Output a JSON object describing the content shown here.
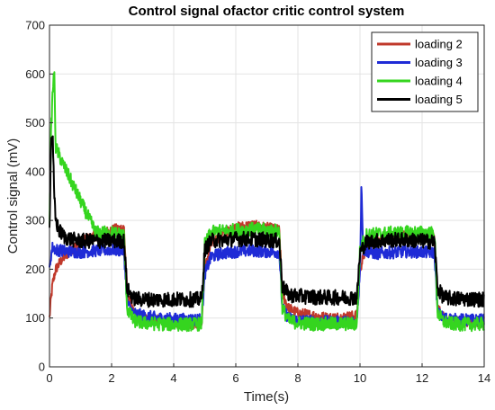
{
  "chart_data": {
    "type": "line",
    "title": "Control signal ofactor critic control system",
    "xlabel": "Time(s)",
    "ylabel": "Control signal (mV)",
    "xlim": [
      0,
      14
    ],
    "ylim": [
      0,
      700
    ],
    "xticks": [
      0,
      2,
      4,
      6,
      8,
      10,
      12,
      14
    ],
    "yticks": [
      0,
      100,
      200,
      300,
      400,
      500,
      600,
      700
    ],
    "grid": true,
    "legend_position": "top-right",
    "series": [
      {
        "name": "loading 2",
        "color": "#c0392b",
        "x": [
          0,
          0.05,
          0.1,
          0.2,
          0.4,
          0.7,
          1.0,
          1.5,
          2.0,
          2.4,
          2.5,
          2.7,
          3.0,
          3.5,
          4.0,
          4.5,
          4.9,
          5.0,
          5.2,
          5.5,
          6.0,
          6.5,
          7.0,
          7.4,
          7.5,
          7.7,
          8.0,
          8.5,
          9.0,
          9.5,
          9.9,
          10.0,
          10.2,
          10.5,
          11.0,
          11.5,
          12.0,
          12.4,
          12.5,
          12.7,
          13.0,
          13.5,
          14.0
        ],
        "y": [
          100,
          140,
          170,
          200,
          220,
          240,
          255,
          270,
          280,
          285,
          150,
          110,
          100,
          95,
          92,
          90,
          90,
          200,
          250,
          270,
          285,
          290,
          285,
          280,
          150,
          120,
          110,
          105,
          100,
          102,
          105,
          200,
          245,
          260,
          265,
          268,
          270,
          265,
          120,
          100,
          95,
          92,
          92
        ]
      },
      {
        "name": "loading 3",
        "color": "#1f2bd6",
        "x": [
          0,
          0.05,
          0.1,
          0.2,
          0.4,
          0.7,
          1.0,
          1.5,
          2.0,
          2.4,
          2.5,
          2.7,
          3.0,
          3.5,
          4.0,
          4.5,
          4.9,
          5.0,
          5.2,
          5.5,
          6.0,
          6.5,
          7.0,
          7.4,
          7.5,
          7.7,
          8.0,
          8.5,
          9.0,
          9.5,
          9.9,
          10.0,
          10.05,
          10.1,
          10.3,
          10.5,
          11.0,
          11.5,
          12.0,
          12.4,
          12.5,
          12.7,
          13.0,
          13.5,
          14.0
        ],
        "y": [
          200,
          230,
          245,
          240,
          238,
          236,
          235,
          238,
          240,
          238,
          130,
          110,
          105,
          100,
          98,
          97,
          97,
          190,
          225,
          232,
          236,
          238,
          236,
          235,
          120,
          100,
          95,
          93,
          92,
          92,
          92,
          200,
          380,
          240,
          235,
          232,
          234,
          236,
          235,
          234,
          110,
          100,
          97,
          96,
          96
        ]
      },
      {
        "name": "loading 4",
        "color": "#35d51f",
        "x": [
          0,
          0.05,
          0.1,
          0.15,
          0.2,
          0.4,
          0.7,
          1.0,
          1.3,
          1.5,
          2.0,
          2.4,
          2.5,
          2.7,
          3.0,
          3.5,
          4.0,
          4.5,
          4.9,
          5.0,
          5.2,
          5.5,
          6.0,
          6.5,
          7.0,
          7.4,
          7.5,
          7.7,
          8.0,
          8.5,
          9.0,
          9.5,
          9.9,
          10.0,
          10.2,
          10.5,
          11.0,
          11.5,
          12.0,
          12.4,
          12.5,
          12.7,
          13.0,
          13.5,
          14.0
        ],
        "y": [
          300,
          480,
          560,
          610,
          450,
          420,
          380,
          340,
          300,
          275,
          275,
          270,
          120,
          95,
          90,
          88,
          87,
          87,
          88,
          250,
          275,
          278,
          280,
          282,
          280,
          278,
          120,
          95,
          90,
          88,
          88,
          88,
          88,
          240,
          270,
          272,
          274,
          275,
          275,
          273,
          110,
          92,
          88,
          87,
          88
        ]
      },
      {
        "name": "loading 5",
        "color": "#000000",
        "x": [
          0,
          0.05,
          0.1,
          0.15,
          0.2,
          0.3,
          0.5,
          0.8,
          1.0,
          1.5,
          2.0,
          2.4,
          2.5,
          2.7,
          3.0,
          3.5,
          4.0,
          4.5,
          4.9,
          5.0,
          5.2,
          5.5,
          6.0,
          6.5,
          7.0,
          7.4,
          7.5,
          7.7,
          8.0,
          8.5,
          9.0,
          9.5,
          9.9,
          10.0,
          10.2,
          10.5,
          11.0,
          11.5,
          12.0,
          12.4,
          12.5,
          12.7,
          13.0,
          13.5,
          14.0
        ],
        "y": [
          280,
          460,
          480,
          350,
          300,
          280,
          265,
          260,
          258,
          258,
          258,
          258,
          160,
          140,
          138,
          138,
          138,
          138,
          138,
          240,
          258,
          260,
          262,
          262,
          260,
          258,
          165,
          148,
          145,
          143,
          142,
          142,
          142,
          235,
          255,
          258,
          260,
          260,
          258,
          256,
          160,
          142,
          140,
          139,
          138
        ]
      }
    ]
  }
}
